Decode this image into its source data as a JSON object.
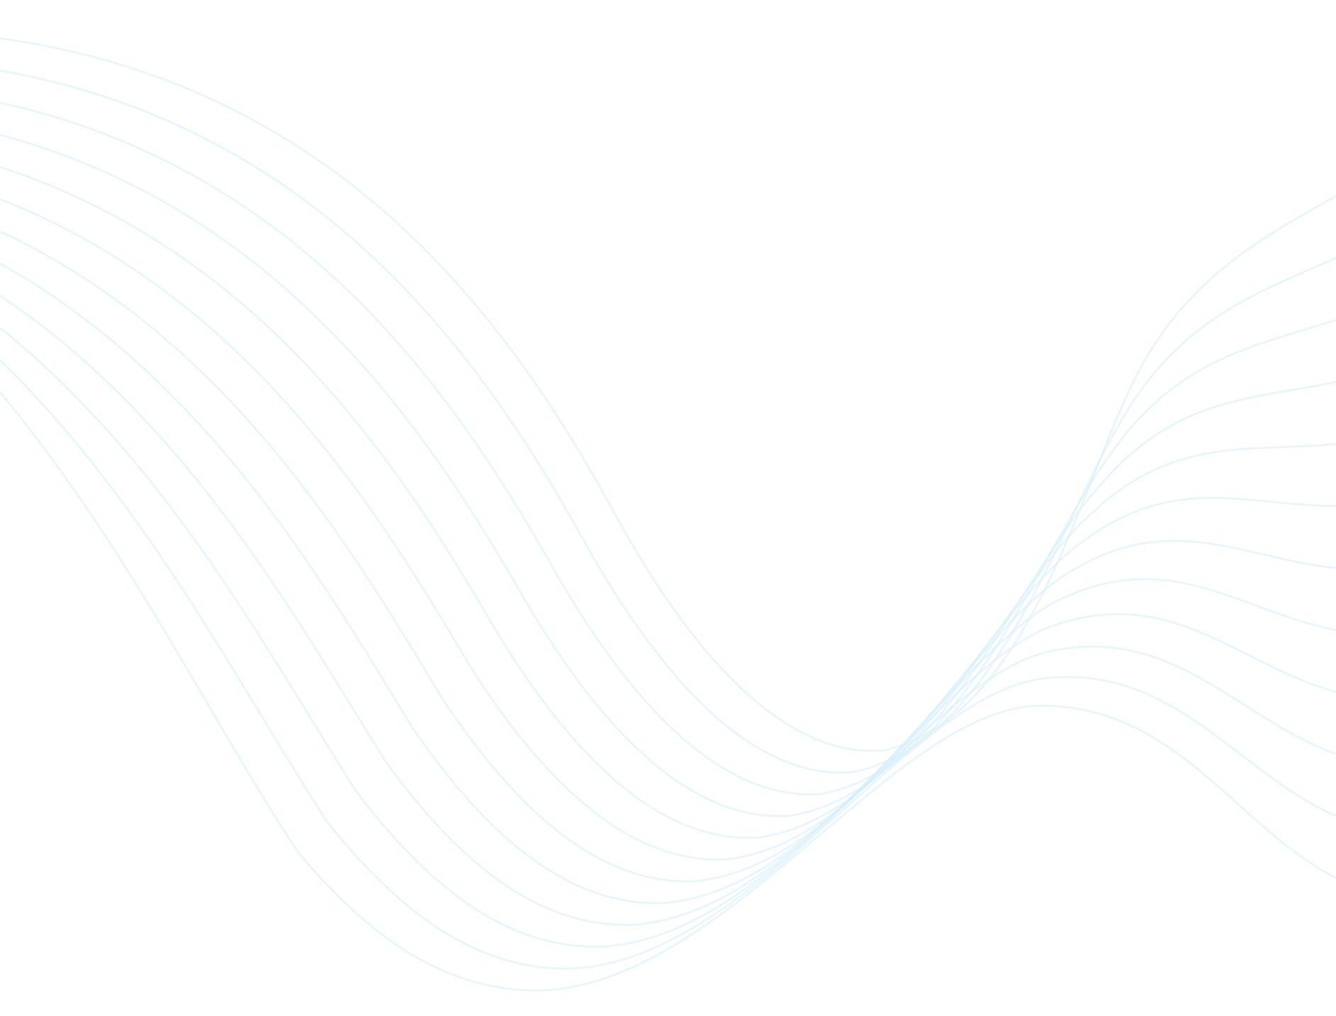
{
  "background": {
    "color": "#ffffff",
    "line_color": "#d6eefa",
    "line_count": 12,
    "pattern": "wave-lines"
  }
}
